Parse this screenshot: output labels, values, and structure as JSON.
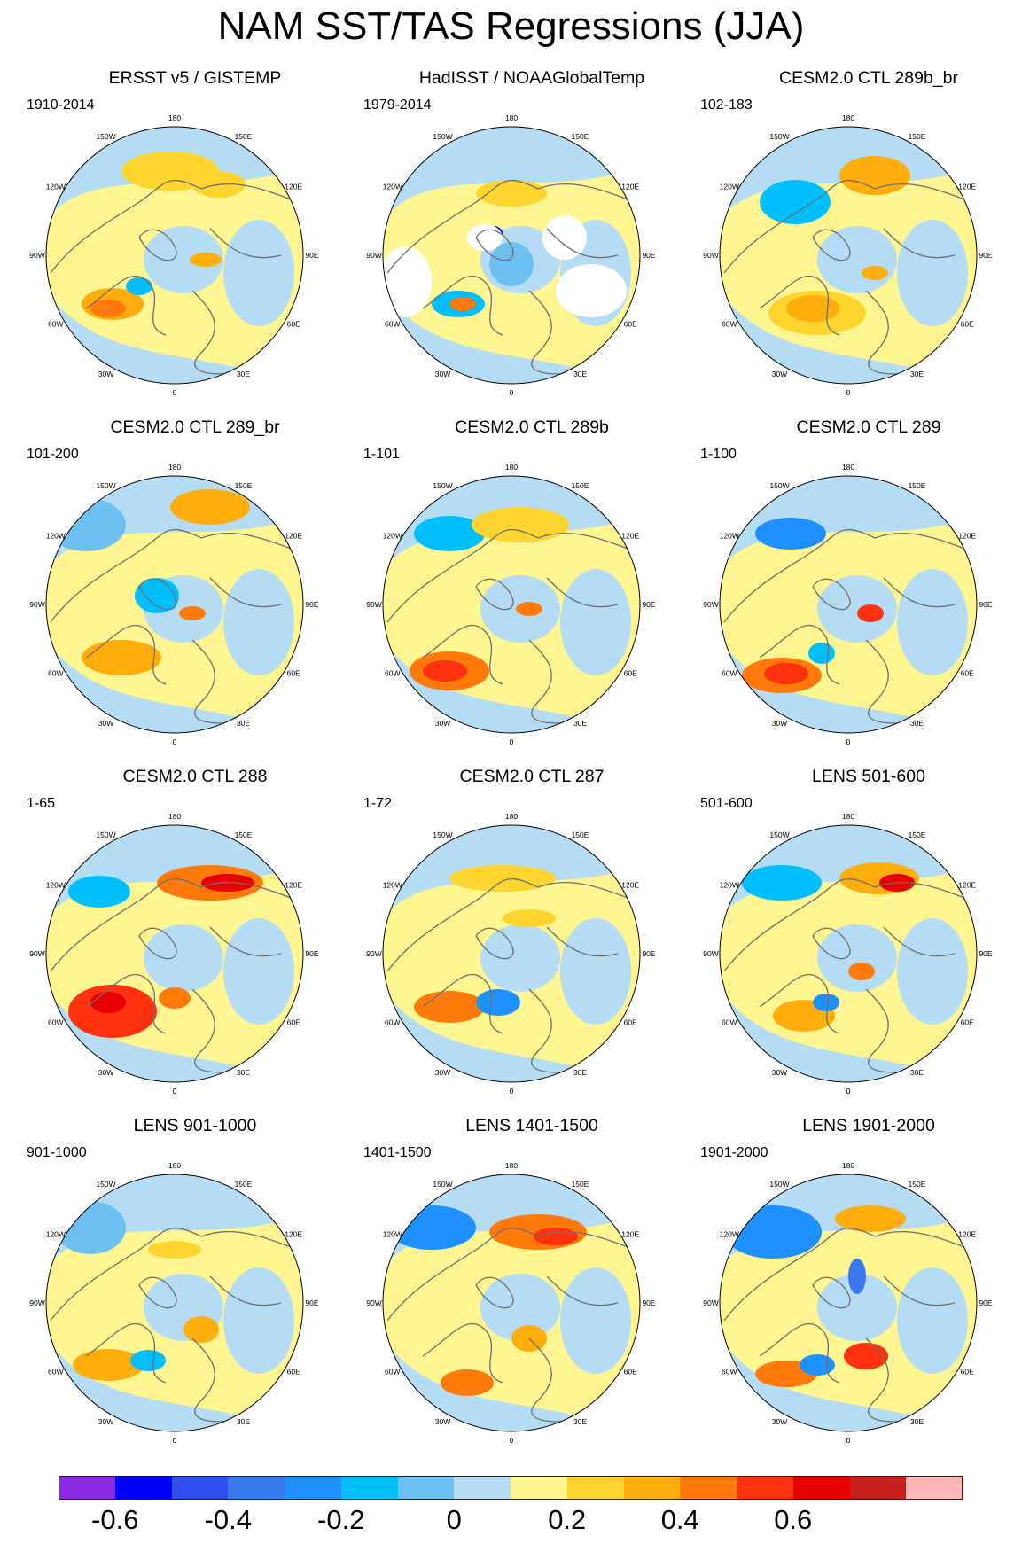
{
  "title": "NAM SST/TAS Regressions (JJA)",
  "longitude_labels": [
    "180",
    "150E",
    "120E",
    "90E",
    "60E",
    "30E",
    "0",
    "30W",
    "60W",
    "90W",
    "120W",
    "150W"
  ],
  "panels": [
    {
      "title": "ERSST v5 / GISTEMP",
      "period": "1910-2014",
      "has_missing_data": false
    },
    {
      "title": "HadISST / NOAAGlobalTemp",
      "period": "1979-2014",
      "has_missing_data": true
    },
    {
      "title": "CESM2.0 CTL 289b_br",
      "period": "102-183",
      "has_missing_data": false
    },
    {
      "title": "CESM2.0 CTL 289_br",
      "period": "101-200",
      "has_missing_data": false
    },
    {
      "title": "CESM2.0 CTL 289b",
      "period": "1-101",
      "has_missing_data": false
    },
    {
      "title": "CESM2.0 CTL 289",
      "period": "1-100",
      "has_missing_data": false
    },
    {
      "title": "CESM2.0 CTL 288",
      "period": "1-65",
      "has_missing_data": false
    },
    {
      "title": "CESM2.0 CTL 287",
      "period": "1-72",
      "has_missing_data": false
    },
    {
      "title": "LENS 501-600",
      "period": "501-600",
      "has_missing_data": false
    },
    {
      "title": "LENS 901-1000",
      "period": "901-1000",
      "has_missing_data": false
    },
    {
      "title": "LENS 1401-1500",
      "period": "1401-1500",
      "has_missing_data": false
    },
    {
      "title": "LENS 1901-2000",
      "period": "1901-2000",
      "has_missing_data": false
    }
  ],
  "colorbar": {
    "colors": [
      "#8a2be2",
      "#0000ff",
      "#2e4ef0",
      "#3a78f0",
      "#1e90ff",
      "#00bfff",
      "#6ec0f0",
      "#b4dcf4",
      "#fff591",
      "#ffd42e",
      "#ffad0a",
      "#ff7a0a",
      "#ff3210",
      "#e60000",
      "#c81e1e",
      "#ffb6b6"
    ],
    "labels": [
      "-0.6",
      "-0.4",
      "-0.2",
      "0",
      "0.2",
      "0.4",
      "0.6"
    ]
  }
}
